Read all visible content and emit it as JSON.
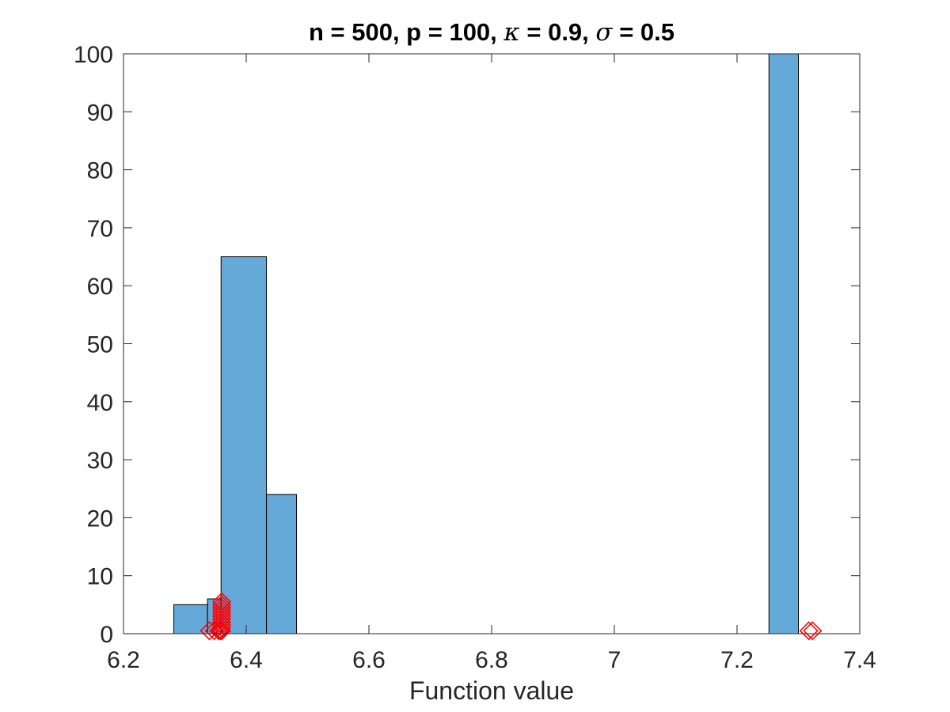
{
  "chart_data": {
    "type": "bar",
    "title": {
      "text_parts": [
        "n = 500, p = 100, ",
        "κ",
        " = 0.9, ",
        "σ",
        " = 0.5"
      ]
    },
    "xlabel": "Function value",
    "ylabel": "",
    "xlim": [
      6.2,
      7.4
    ],
    "ylim": [
      0,
      100
    ],
    "xticks": [
      "6.2",
      "6.4",
      "6.6",
      "6.8",
      "7",
      "7.2",
      "7.4"
    ],
    "xtick_values": [
      6.2,
      6.4,
      6.6,
      6.8,
      7.0,
      7.2,
      7.4
    ],
    "yticks": [
      "0",
      "10",
      "20",
      "30",
      "40",
      "50",
      "60",
      "70",
      "80",
      "90",
      "100"
    ],
    "ytick_values": [
      0,
      10,
      20,
      30,
      40,
      50,
      60,
      70,
      80,
      90,
      100
    ],
    "grid": false,
    "bins": [
      {
        "x0": 6.282,
        "x1": 6.337,
        "count": 5
      },
      {
        "x0": 6.337,
        "x1": 6.359,
        "count": 6
      },
      {
        "x0": 6.359,
        "x1": 6.433,
        "count": 65
      },
      {
        "x0": 6.433,
        "x1": 6.482,
        "count": 24
      },
      {
        "x0": 7.252,
        "x1": 7.3,
        "count": 100
      }
    ],
    "markers": [
      {
        "x": 6.34,
        "y": 0.5
      },
      {
        "x": 6.348,
        "y": 0.5
      },
      {
        "x": 6.355,
        "y": 0.5
      },
      {
        "x": 6.358,
        "y": 0.5
      },
      {
        "x": 6.36,
        "y": 0.5
      },
      {
        "x": 6.36,
        "y": 1.0
      },
      {
        "x": 6.36,
        "y": 1.5
      },
      {
        "x": 6.36,
        "y": 2.0
      },
      {
        "x": 6.36,
        "y": 2.5
      },
      {
        "x": 6.36,
        "y": 3.0
      },
      {
        "x": 6.36,
        "y": 3.5
      },
      {
        "x": 6.36,
        "y": 4.0
      },
      {
        "x": 6.36,
        "y": 4.5
      },
      {
        "x": 6.36,
        "y": 5.0
      },
      {
        "x": 6.36,
        "y": 5.5
      },
      {
        "x": 7.317,
        "y": 0.5
      },
      {
        "x": 7.323,
        "y": 0.5
      }
    ],
    "colors": {
      "bar_fill": "#64a9d8",
      "bar_edge": "#000000",
      "marker": "#ff0000",
      "axis": "#262626"
    }
  }
}
